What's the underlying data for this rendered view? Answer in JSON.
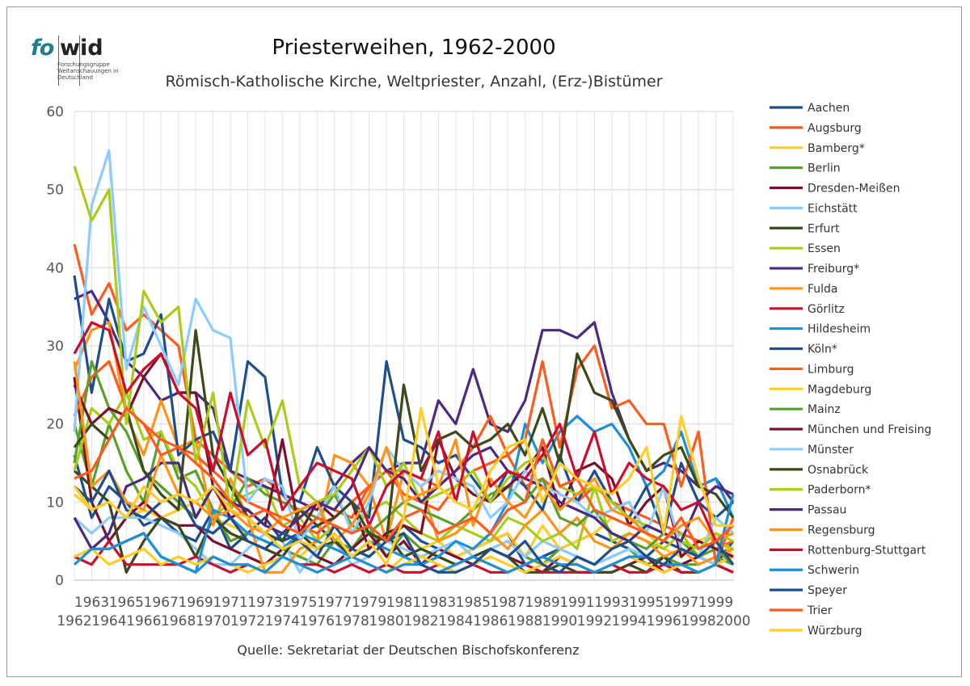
{
  "logo": {
    "brand_a": "fo",
    "brand_b": "wid",
    "tagline": "Forschungsgruppe Weltanschauungen in Deutschland"
  },
  "chart_data": {
    "type": "line",
    "title": "Priesterweihen, 1962-2000",
    "subtitle": "Römisch-Katholische Kirche, Weltpriester, Anzahl, (Erz-)Bistümer",
    "source": "Quelle: Sekretariat der Deutschen Bischofskonferenz",
    "xlabel": "",
    "ylabel": "",
    "ylim": [
      0,
      60
    ],
    "yticks": [
      0,
      10,
      20,
      30,
      40,
      50,
      60
    ],
    "grid": true,
    "legend_position": "right",
    "x": [
      1962,
      1963,
      1964,
      1965,
      1966,
      1967,
      1968,
      1969,
      1970,
      1971,
      1972,
      1973,
      1974,
      1975,
      1976,
      1977,
      1978,
      1979,
      1980,
      1981,
      1982,
      1983,
      1984,
      1985,
      1986,
      1987,
      1988,
      1989,
      1990,
      1991,
      1992,
      1993,
      1994,
      1995,
      1996,
      1997,
      1998,
      1999,
      2000
    ],
    "series": [
      {
        "name": "Aachen",
        "color": "#1f4e8c",
        "values": [
          16,
          8,
          12,
          10,
          7,
          8,
          6,
          5,
          9,
          4,
          6,
          8,
          5,
          6,
          7,
          5,
          4,
          6,
          5,
          7,
          5,
          4,
          3,
          4,
          5,
          6,
          2,
          3,
          4,
          5,
          6,
          5,
          4,
          3,
          5,
          4,
          3,
          2,
          5
        ]
      },
      {
        "name": "Augsburg",
        "color": "#ff5a1f",
        "values": [
          43,
          34,
          38,
          32,
          34,
          32,
          30,
          18,
          16,
          14,
          12,
          13,
          11,
          8,
          10,
          9,
          8,
          12,
          14,
          11,
          10,
          9,
          12,
          14,
          15,
          16,
          12,
          13,
          11,
          10,
          12,
          10,
          9,
          8,
          7,
          6,
          5,
          4,
          5
        ]
      },
      {
        "name": "Bamberg*",
        "color": "#ffcc29",
        "values": [
          11,
          9,
          10,
          8,
          9,
          8,
          9,
          10,
          8,
          7,
          6,
          5,
          4,
          3,
          5,
          4,
          3,
          2,
          1,
          3,
          4,
          5,
          3,
          4,
          5,
          6,
          3,
          7,
          4,
          5,
          6,
          8,
          7,
          6,
          4,
          3,
          5,
          6,
          3
        ]
      },
      {
        "name": "Berlin",
        "color": "#5aa02c",
        "values": [
          20,
          12,
          20,
          14,
          10,
          19,
          13,
          14,
          9,
          5,
          6,
          5,
          4,
          3,
          2,
          5,
          4,
          7,
          3,
          6,
          4,
          3,
          2,
          3,
          4,
          5,
          3,
          2,
          4,
          3,
          2,
          3,
          4,
          2,
          3,
          2,
          2,
          3,
          2
        ]
      },
      {
        "name": "Dresden-Meißen",
        "color": "#7a0f2e",
        "values": [
          26,
          10,
          5,
          8,
          10,
          8,
          7,
          7,
          5,
          4,
          3,
          2,
          4,
          5,
          3,
          2,
          4,
          6,
          3,
          5,
          2,
          4,
          3,
          2,
          4,
          3,
          2,
          1,
          3,
          2,
          1,
          1,
          2,
          3,
          1,
          2,
          3,
          2,
          1
        ]
      },
      {
        "name": "Eichstätt",
        "color": "#8ccbff",
        "values": [
          8,
          6,
          8,
          8,
          8,
          7,
          6,
          4,
          2,
          2,
          4,
          6,
          5,
          1,
          4,
          5,
          2,
          3,
          5,
          4,
          3,
          4,
          5,
          3,
          4,
          5,
          3,
          5,
          4,
          3,
          2,
          3,
          4,
          3,
          2,
          4,
          3,
          2,
          3
        ]
      },
      {
        "name": "Erfurt",
        "color": "#3a4a1a",
        "values": [
          14,
          12,
          10,
          1,
          5,
          8,
          7,
          3,
          8,
          6,
          5,
          4,
          3,
          6,
          4,
          5,
          3,
          4,
          6,
          3,
          4,
          3,
          2,
          3,
          4,
          3,
          1,
          1,
          2,
          1,
          1,
          1,
          2,
          1,
          3,
          1,
          1,
          2,
          1
        ]
      },
      {
        "name": "Essen",
        "color": "#a9cc1a",
        "values": [
          14,
          22,
          20,
          24,
          18,
          19,
          14,
          12,
          8,
          10,
          11,
          12,
          7,
          8,
          5,
          7,
          6,
          9,
          10,
          8,
          6,
          5,
          7,
          6,
          5,
          8,
          7,
          5,
          6,
          4,
          12,
          5,
          6,
          5,
          4,
          6,
          3,
          5,
          4
        ]
      },
      {
        "name": "Freiburg*",
        "color": "#4b2a7f",
        "values": [
          36,
          37,
          33,
          28,
          26,
          23,
          24,
          24,
          22,
          14,
          13,
          12,
          11,
          10,
          9,
          12,
          15,
          17,
          14,
          15,
          15,
          23,
          20,
          27,
          20,
          19,
          23,
          32,
          32,
          31,
          33,
          24,
          18,
          14,
          15,
          14,
          12,
          13,
          10
        ]
      },
      {
        "name": "Fulda",
        "color": "#ff9419",
        "values": [
          27,
          32,
          33,
          21,
          16,
          23,
          17,
          18,
          7,
          13,
          8,
          1,
          1,
          4,
          5,
          16,
          15,
          12,
          5,
          14,
          12,
          5,
          6,
          8,
          6,
          4,
          7,
          9,
          6,
          8,
          5,
          4,
          6,
          5,
          3,
          4,
          2,
          3,
          4
        ]
      },
      {
        "name": "Görlitz",
        "color": "#c8102e",
        "values": [
          3,
          2,
          5,
          2,
          2,
          2,
          2,
          3,
          2,
          1,
          2,
          1,
          3,
          2,
          2,
          1,
          2,
          1,
          2,
          1,
          1,
          2,
          1,
          2,
          1,
          1,
          2,
          1,
          1,
          1,
          1,
          2,
          1,
          1,
          2,
          1,
          1,
          2,
          1
        ]
      },
      {
        "name": "Hildesheim",
        "color": "#1e8fd6",
        "values": [
          3,
          4,
          4,
          5,
          6,
          3,
          2,
          1,
          9,
          8,
          6,
          5,
          4,
          6,
          5,
          4,
          3,
          5,
          4,
          3,
          2,
          3,
          5,
          4,
          6,
          10,
          20,
          15,
          19,
          21,
          19,
          20,
          17,
          12,
          14,
          19,
          12,
          13,
          8
        ]
      },
      {
        "name": "Köln*",
        "color": "#1f4e8c",
        "values": [
          39,
          24,
          36,
          28,
          29,
          34,
          16,
          18,
          19,
          14,
          28,
          26,
          11,
          10,
          17,
          12,
          10,
          8,
          28,
          18,
          17,
          15,
          16,
          13,
          10,
          14,
          12,
          9,
          16,
          10,
          14,
          10,
          8,
          12,
          6,
          15,
          10,
          8,
          10
        ]
      },
      {
        "name": "Limburg",
        "color": "#ff5a1f",
        "values": [
          21,
          26,
          28,
          22,
          20,
          18,
          17,
          16,
          14,
          12,
          10,
          9,
          8,
          7,
          6,
          8,
          10,
          12,
          14,
          14,
          13,
          12,
          14,
          17,
          21,
          16,
          18,
          28,
          17,
          27,
          30,
          22,
          23,
          20,
          20,
          12,
          19,
          2,
          8
        ]
      },
      {
        "name": "Magdeburg",
        "color": "#ffcc29",
        "values": [
          3,
          4,
          2,
          3,
          4,
          2,
          3,
          2,
          3,
          2,
          1,
          2,
          3,
          2,
          1,
          2,
          3,
          2,
          1,
          2,
          3,
          2,
          1,
          2,
          3,
          2,
          1,
          2,
          3,
          2,
          1,
          2,
          3,
          2,
          1,
          2,
          1,
          2,
          3
        ]
      },
      {
        "name": "Mainz",
        "color": "#5aa02c",
        "values": [
          15,
          28,
          22,
          19,
          14,
          12,
          10,
          8,
          12,
          9,
          13,
          11,
          10,
          9,
          8,
          11,
          7,
          6,
          8,
          10,
          9,
          8,
          7,
          9,
          11,
          12,
          10,
          13,
          8,
          7,
          9,
          6,
          5,
          4,
          6,
          5,
          3,
          4,
          2
        ]
      },
      {
        "name": "München und Freising",
        "color": "#7a0f2e",
        "values": [
          25,
          20,
          22,
          21,
          26,
          29,
          24,
          24,
          12,
          8,
          9,
          7,
          18,
          6,
          10,
          8,
          10,
          4,
          6,
          7,
          6,
          18,
          13,
          11,
          10,
          12,
          14,
          17,
          9,
          14,
          15,
          13,
          7,
          10,
          12,
          3,
          5,
          4,
          3
        ]
      },
      {
        "name": "Münster",
        "color": "#8ccbff",
        "values": [
          19,
          48,
          55,
          27,
          35,
          30,
          25,
          36,
          32,
          31,
          10,
          13,
          12,
          5,
          8,
          12,
          6,
          10,
          17,
          14,
          12,
          14,
          13,
          12,
          8,
          10,
          14,
          12,
          11,
          10,
          8,
          9,
          10,
          6,
          12,
          4,
          3,
          8,
          6
        ]
      },
      {
        "name": "Osnabrück",
        "color": "#3a4a1a",
        "values": [
          17,
          20,
          18,
          22,
          14,
          11,
          9,
          32,
          16,
          12,
          8,
          6,
          5,
          9,
          7,
          8,
          10,
          6,
          5,
          25,
          14,
          18,
          19,
          17,
          18,
          20,
          16,
          22,
          15,
          29,
          24,
          23,
          18,
          14,
          16,
          17,
          12,
          11,
          8
        ]
      },
      {
        "name": "Paderborn*",
        "color": "#a9cc1a",
        "values": [
          53,
          46,
          50,
          20,
          37,
          33,
          35,
          15,
          24,
          9,
          23,
          17,
          23,
          12,
          10,
          11,
          14,
          17,
          12,
          15,
          10,
          11,
          12,
          14,
          10,
          13,
          15,
          16,
          12,
          11,
          12,
          10,
          8,
          7,
          6,
          5,
          4,
          6,
          5
        ]
      },
      {
        "name": "Passau",
        "color": "#4b2a7f",
        "values": [
          8,
          4,
          6,
          12,
          13,
          15,
          15,
          8,
          12,
          10,
          9,
          7,
          6,
          8,
          10,
          9,
          12,
          17,
          14,
          13,
          10,
          12,
          14,
          16,
          17,
          14,
          13,
          12,
          10,
          9,
          8,
          6,
          5,
          7,
          6,
          5,
          10,
          12,
          11
        ]
      },
      {
        "name": "Regensburg",
        "color": "#ff9419",
        "values": [
          28,
          12,
          14,
          10,
          9,
          16,
          11,
          10,
          8,
          9,
          7,
          6,
          8,
          9,
          10,
          5,
          7,
          11,
          17,
          10,
          11,
          12,
          18,
          7,
          13,
          10,
          8,
          12,
          9,
          11,
          13,
          9,
          8,
          6,
          5,
          7,
          8,
          5,
          6
        ]
      },
      {
        "name": "Rottenburg-Stuttgart",
        "color": "#c8102e",
        "values": [
          29,
          33,
          32,
          24,
          27,
          29,
          24,
          22,
          14,
          24,
          16,
          18,
          9,
          12,
          15,
          14,
          13,
          7,
          12,
          14,
          13,
          19,
          10,
          19,
          12,
          14,
          13,
          16,
          20,
          13,
          19,
          11,
          15,
          13,
          12,
          9,
          10,
          5,
          7
        ]
      },
      {
        "name": "Schwerin",
        "color": "#1e8fd6",
        "values": [
          2,
          4,
          4,
          5,
          6,
          3,
          2,
          1,
          3,
          2,
          2,
          1,
          3,
          2,
          1,
          2,
          3,
          2,
          1,
          2,
          2,
          1,
          2,
          3,
          2,
          1,
          2,
          3,
          2,
          2,
          1,
          2,
          3,
          3,
          2,
          2,
          1,
          2,
          11
        ]
      },
      {
        "name": "Speyer",
        "color": "#1f4e8c",
        "values": [
          12,
          10,
          14,
          9,
          8,
          10,
          11,
          7,
          6,
          8,
          5,
          4,
          6,
          5,
          3,
          7,
          4,
          3,
          5,
          6,
          2,
          1,
          1,
          2,
          4,
          3,
          5,
          2,
          1,
          3,
          2,
          4,
          5,
          3,
          2,
          4,
          3,
          5,
          2
        ]
      },
      {
        "name": "Trier",
        "color": "#ff5a1f",
        "values": [
          13,
          14,
          18,
          22,
          20,
          16,
          17,
          15,
          13,
          10,
          8,
          9,
          7,
          6,
          8,
          7,
          6,
          7,
          5,
          8,
          9,
          6,
          7,
          8,
          6,
          9,
          10,
          18,
          12,
          13,
          9,
          8,
          7,
          6,
          5,
          8,
          4,
          5,
          7
        ]
      },
      {
        "name": "Würzburg",
        "color": "#ffcc29",
        "values": [
          12,
          9,
          10,
          8,
          12,
          10,
          11,
          10,
          12,
          9,
          8,
          6,
          4,
          5,
          4,
          6,
          3,
          5,
          2,
          8,
          22,
          12,
          10,
          9,
          14,
          17,
          18,
          10,
          15,
          13,
          12,
          11,
          13,
          17,
          6,
          21,
          13,
          7,
          7
        ]
      }
    ]
  }
}
